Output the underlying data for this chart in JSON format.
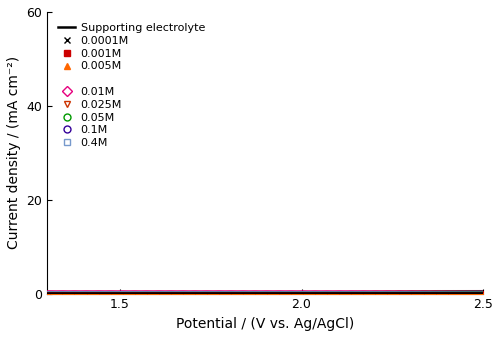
{
  "title": "",
  "xlabel": "Potential / (V vs. Ag/AgCl)",
  "ylabel": "Current density / (mA cm⁻²)",
  "xlim": [
    1.3,
    2.5
  ],
  "ylim": [
    0,
    60
  ],
  "xticks": [
    1.5,
    2.0,
    2.5
  ],
  "yticks": [
    0,
    20,
    40,
    60
  ],
  "series": [
    {
      "label": "Supporting electrolyte",
      "color": "#000000",
      "marker": "none",
      "open": false,
      "onset": 2.17,
      "exponent": 3.8,
      "scale": 0.012,
      "type": "line",
      "lw": 2.0
    },
    {
      "label": "0.0001M",
      "color": "#000000",
      "marker": "x",
      "open": false,
      "onset": 2.17,
      "exponent": 3.8,
      "scale": 0.012,
      "type": "scatter",
      "lw": 2.0
    },
    {
      "label": "0.001M",
      "color": "#cc0000",
      "marker": "s",
      "open": false,
      "onset": 2.14,
      "exponent": 3.8,
      "scale": 0.012,
      "type": "scatter",
      "lw": 2.0
    },
    {
      "label": "0.005M",
      "color": "#ff6600",
      "marker": "^",
      "open": false,
      "onset": 2.11,
      "exponent": 3.8,
      "scale": 0.012,
      "type": "scatter",
      "lw": 2.0
    },
    {
      "label": "0.01M",
      "color": "#e6007e",
      "marker": "D",
      "open": true,
      "onset": 2.075,
      "exponent": 3.8,
      "scale": 0.012,
      "type": "scatter",
      "lw": 2.0
    },
    {
      "label": "0.025M",
      "color": "#cc3300",
      "marker": "v",
      "open": true,
      "onset": 2.04,
      "exponent": 3.8,
      "scale": 0.012,
      "type": "scatter",
      "lw": 2.0
    },
    {
      "label": "0.05M",
      "color": "#009900",
      "marker": "o",
      "open": true,
      "onset": 2.01,
      "exponent": 3.8,
      "scale": 0.012,
      "type": "scatter",
      "lw": 2.5
    },
    {
      "label": "0.1M",
      "color": "#330099",
      "marker": "o",
      "open": true,
      "onset": 1.97,
      "exponent": 3.8,
      "scale": 0.012,
      "type": "scatter",
      "lw": 2.5
    },
    {
      "label": "0.4M",
      "color": "#7799cc",
      "marker": "s",
      "open": true,
      "onset": 1.91,
      "exponent": 3.8,
      "scale": 0.012,
      "type": "scatter",
      "lw": 2.5
    }
  ],
  "background_color": "#ffffff",
  "legend_fontsize": 8,
  "axis_fontsize": 10,
  "tick_fontsize": 9
}
